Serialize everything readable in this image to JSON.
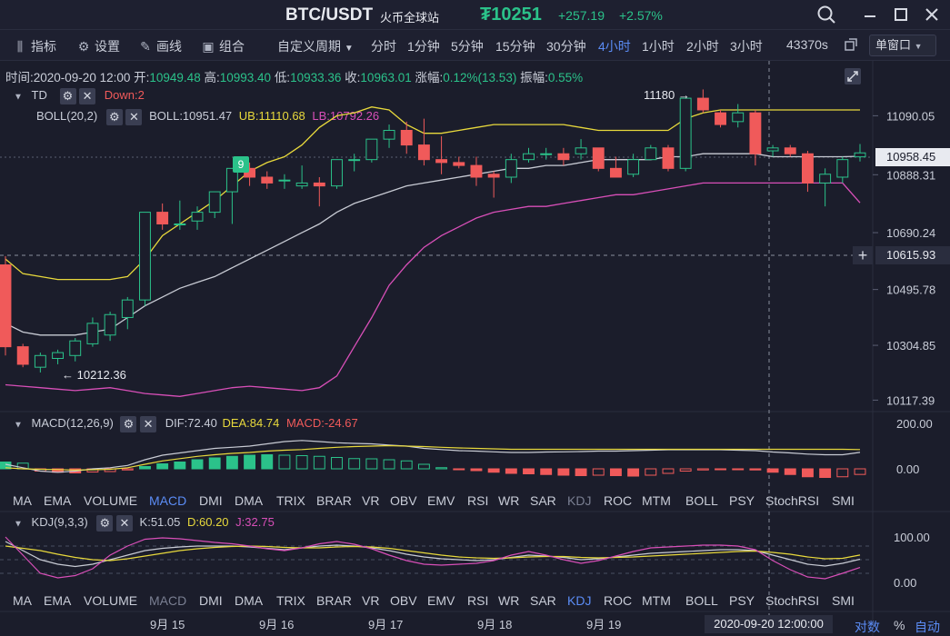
{
  "title": {
    "pair": "BTC/USDT",
    "exchange": "火币全球站",
    "currency_symbol": "₮",
    "price": "10251",
    "change": "+257.19",
    "change_pct": "+2.57%"
  },
  "toolbar": {
    "indicator": "指标",
    "settings": "设置",
    "draw": "画线",
    "combine": "组合",
    "custom_period": "自定义周期",
    "periods": [
      "分时",
      "1分钟",
      "5分钟",
      "15分钟",
      "30分钟",
      "4小时",
      "1小时",
      "2小时",
      "3小时"
    ],
    "active_period": "4小时",
    "countdown": "43370s",
    "window_mode": "单窗口"
  },
  "ohlc_bar": {
    "time_label": "时间:",
    "time": "2020-09-20 12:00",
    "open_label": "开:",
    "open": "10949.48",
    "high_label": "高:",
    "high": "10993.40",
    "low_label": "低:",
    "low": "10933.36",
    "close_label": "收:",
    "close": "10963.01",
    "change_label": "涨幅:",
    "change": "0.12%(13.53)",
    "amp_label": "振幅:",
    "amp": "0.55%"
  },
  "main_legend": {
    "td": "TD",
    "td_down": "Down:2",
    "boll_name": "BOLL(20,2)",
    "boll": "BOLL:10951.47",
    "ub": "UB:11110.68",
    "lb": "LB:10792.26"
  },
  "price_axis": [
    "11090.05",
    "10888.31",
    "10690.24",
    "10495.78",
    "10304.85",
    "10117.39"
  ],
  "price_tags": {
    "last": "10958.45",
    "cursor": "10615.93"
  },
  "annotations": {
    "high": "11180",
    "low": "10212.36",
    "td_count": "9"
  },
  "macd_legend": {
    "name": "MACD(12,26,9)",
    "dif": "DIF:72.40",
    "dea": "DEA:84.74",
    "macd": "MACD:-24.67"
  },
  "macd_axis": [
    "200.00",
    "0.00"
  ],
  "kdj_legend": {
    "name": "KDJ(9,3,3)",
    "k": "K:51.05",
    "d": "D:60.20",
    "j": "J:32.75"
  },
  "kdj_axis": [
    "100.00",
    "0.00"
  ],
  "indicator_tabs": [
    "MA",
    "EMA",
    "VOLUME",
    "MACD",
    "DMI",
    "DMA",
    "TRIX",
    "BRAR",
    "VR",
    "OBV",
    "EMV",
    "RSI",
    "WR",
    "SAR",
    "KDJ",
    "ROC",
    "MTM",
    "BOLL",
    "PSY",
    "StochRSI",
    "SMI"
  ],
  "x_axis": [
    "9月 15",
    "9月 16",
    "9月 17",
    "9月 18",
    "9月 19"
  ],
  "cursor_time": "2020-09-20 12:00:00",
  "footer": {
    "log": "对数",
    "percent": "%",
    "auto": "自动"
  },
  "colors": {
    "up": "#2bc28a",
    "down": "#f05a5a",
    "ub": "#e8d93c",
    "lb": "#d84fb8",
    "mid": "#c8cbd4",
    "accent": "#5b8cf5"
  },
  "chart_data": {
    "type": "candlestick",
    "candles": [
      {
        "o": 10580,
        "h": 10610,
        "l": 10270,
        "c": 10300
      },
      {
        "o": 10300,
        "h": 10310,
        "l": 10230,
        "c": 10240
      },
      {
        "o": 10230,
        "h": 10280,
        "l": 10212,
        "c": 10270
      },
      {
        "o": 10260,
        "h": 10290,
        "l": 10240,
        "c": 10280
      },
      {
        "o": 10270,
        "h": 10330,
        "l": 10250,
        "c": 10320
      },
      {
        "o": 10310,
        "h": 10400,
        "l": 10300,
        "c": 10380
      },
      {
        "o": 10340,
        "h": 10420,
        "l": 10320,
        "c": 10410
      },
      {
        "o": 10400,
        "h": 10470,
        "l": 10360,
        "c": 10460
      },
      {
        "o": 10460,
        "h": 10760,
        "l": 10440,
        "c": 10760
      },
      {
        "o": 10760,
        "h": 10790,
        "l": 10700,
        "c": 10720
      },
      {
        "o": 10720,
        "h": 10800,
        "l": 10700,
        "c": 10720
      },
      {
        "o": 10730,
        "h": 10780,
        "l": 10700,
        "c": 10760
      },
      {
        "o": 10760,
        "h": 10830,
        "l": 10740,
        "c": 10830
      },
      {
        "o": 10830,
        "h": 10910,
        "l": 10720,
        "c": 10910
      },
      {
        "o": 10910,
        "h": 10930,
        "l": 10850,
        "c": 10880
      },
      {
        "o": 10880,
        "h": 10900,
        "l": 10840,
        "c": 10860
      },
      {
        "o": 10870,
        "h": 10890,
        "l": 10840,
        "c": 10870
      },
      {
        "o": 10850,
        "h": 10920,
        "l": 10840,
        "c": 10860
      },
      {
        "o": 10860,
        "h": 10880,
        "l": 10780,
        "c": 10850
      },
      {
        "o": 10850,
        "h": 10940,
        "l": 10840,
        "c": 10940
      },
      {
        "o": 10940,
        "h": 10960,
        "l": 10900,
        "c": 10940
      },
      {
        "o": 10940,
        "h": 11010,
        "l": 10930,
        "c": 11010
      },
      {
        "o": 11010,
        "h": 11060,
        "l": 10980,
        "c": 11040
      },
      {
        "o": 11040,
        "h": 11070,
        "l": 10960,
        "c": 10990
      },
      {
        "o": 10990,
        "h": 11080,
        "l": 10920,
        "c": 10940
      },
      {
        "o": 10940,
        "h": 11020,
        "l": 10890,
        "c": 10930
      },
      {
        "o": 10930,
        "h": 10950,
        "l": 10910,
        "c": 10920
      },
      {
        "o": 10920,
        "h": 10950,
        "l": 10850,
        "c": 10880
      },
      {
        "o": 10890,
        "h": 10900,
        "l": 10810,
        "c": 10880
      },
      {
        "o": 10880,
        "h": 10960,
        "l": 10860,
        "c": 10940
      },
      {
        "o": 10940,
        "h": 10980,
        "l": 10930,
        "c": 10960
      },
      {
        "o": 10960,
        "h": 10980,
        "l": 10940,
        "c": 10960
      },
      {
        "o": 10960,
        "h": 10980,
        "l": 10920,
        "c": 10940
      },
      {
        "o": 10960,
        "h": 11010,
        "l": 10940,
        "c": 10980
      },
      {
        "o": 10980,
        "h": 10980,
        "l": 10900,
        "c": 10910
      },
      {
        "o": 10910,
        "h": 10950,
        "l": 10880,
        "c": 10880
      },
      {
        "o": 10890,
        "h": 10960,
        "l": 10880,
        "c": 10940
      },
      {
        "o": 10940,
        "h": 10990,
        "l": 10940,
        "c": 10980
      },
      {
        "o": 10980,
        "h": 10990,
        "l": 10900,
        "c": 10910
      },
      {
        "o": 10910,
        "h": 11150,
        "l": 10900,
        "c": 11150
      },
      {
        "o": 11150,
        "h": 11180,
        "l": 11100,
        "c": 11110
      },
      {
        "o": 11100,
        "h": 11110,
        "l": 11050,
        "c": 11060
      },
      {
        "o": 11070,
        "h": 11130,
        "l": 11050,
        "c": 11100
      },
      {
        "o": 11100,
        "h": 11110,
        "l": 10920,
        "c": 10960
      },
      {
        "o": 10970,
        "h": 10990,
        "l": 10950,
        "c": 10980
      },
      {
        "o": 10980,
        "h": 10990,
        "l": 10950,
        "c": 10960
      },
      {
        "o": 10960,
        "h": 10970,
        "l": 10830,
        "c": 10860
      },
      {
        "o": 10860,
        "h": 10910,
        "l": 10780,
        "c": 10890
      },
      {
        "o": 10880,
        "h": 10950,
        "l": 10860,
        "c": 10940
      },
      {
        "o": 10949.48,
        "h": 10993.4,
        "l": 10933.36,
        "c": 10963.01
      }
    ],
    "ub": [
      10600,
      10550,
      10540,
      10530,
      10530,
      10530,
      10530,
      10540,
      10600,
      10680,
      10720,
      10760,
      10800,
      10850,
      10900,
      10930,
      10950,
      10990,
      11050,
      11090,
      11100,
      11120,
      11110,
      11060,
      11030,
      11030,
      11040,
      11050,
      11060,
      11060,
      11060,
      11060,
      11060,
      11050,
      11040,
      11040,
      11040,
      11040,
      11040,
      11080,
      11100,
      11110,
      11110,
      11110,
      11110,
      11110,
      11110,
      11110,
      11110,
      11110
    ],
    "mid": [
      10380,
      10350,
      10340,
      10340,
      10340,
      10350,
      10360,
      10400,
      10440,
      10470,
      10500,
      10520,
      10540,
      10570,
      10600,
      10630,
      10660,
      10690,
      10720,
      10760,
      10790,
      10810,
      10830,
      10850,
      10860,
      10870,
      10880,
      10890,
      10900,
      10910,
      10910,
      10920,
      10920,
      10930,
      10940,
      10940,
      10940,
      10940,
      10950,
      10950,
      10960,
      10960,
      10960,
      10960,
      10950,
      10950,
      10950,
      10950,
      10950,
      10951.47
    ],
    "lb": [
      10170,
      10165,
      10160,
      10155,
      10150,
      10155,
      10160,
      10150,
      10140,
      10135,
      10130,
      10140,
      10150,
      10160,
      10165,
      10160,
      10155,
      10150,
      10160,
      10200,
      10300,
      10400,
      10510,
      10580,
      10640,
      10680,
      10710,
      10740,
      10760,
      10770,
      10780,
      10780,
      10790,
      10800,
      10810,
      10820,
      10820,
      10830,
      10840,
      10850,
      10860,
      10860,
      10860,
      10860,
      10860,
      10860,
      10860,
      10860,
      10860,
      10792.26
    ],
    "macd_range": [
      -50,
      220
    ],
    "macd_hist": [
      30,
      25,
      -10,
      -15,
      -18,
      -14,
      -12,
      -5,
      10,
      22,
      30,
      40,
      48,
      55,
      60,
      62,
      60,
      58,
      55,
      50,
      45,
      44,
      40,
      35,
      20,
      5,
      -3,
      -8,
      -15,
      -20,
      -22,
      -25,
      -28,
      -30,
      -28,
      -30,
      -32,
      -28,
      -20,
      -10,
      -5,
      -2,
      -3,
      -5,
      -15,
      -25,
      -35,
      -38,
      -35,
      -24.67
    ],
    "macd_dif": [
      20,
      5,
      -10,
      -15,
      -10,
      0,
      5,
      15,
      40,
      60,
      70,
      80,
      90,
      95,
      100,
      110,
      120,
      125,
      120,
      115,
      112,
      110,
      105,
      100,
      90,
      85,
      80,
      78,
      75,
      72,
      72,
      74,
      75,
      76,
      78,
      78,
      80,
      82,
      84,
      84,
      84,
      84,
      82,
      80,
      74,
      70,
      65,
      62,
      62,
      72.4
    ],
    "macd_dea": [
      5,
      0,
      -2,
      -3,
      -5,
      -4,
      -2,
      5,
      20,
      35,
      45,
      55,
      62,
      68,
      72,
      78,
      82,
      85,
      90,
      95,
      98,
      100,
      102,
      100,
      98,
      95,
      92,
      90,
      88,
      86,
      86,
      86,
      86,
      86,
      86,
      86,
      86,
      86,
      86,
      86,
      86,
      86,
      86,
      86,
      86,
      86,
      86,
      86,
      86,
      84.74
    ],
    "kdj_k": [
      90,
      70,
      50,
      40,
      35,
      40,
      50,
      60,
      70,
      75,
      78,
      80,
      80,
      80,
      78,
      75,
      72,
      76,
      80,
      82,
      80,
      76,
      70,
      62,
      56,
      52,
      50,
      48,
      50,
      55,
      60,
      58,
      55,
      50,
      52,
      56,
      60,
      64,
      66,
      68,
      70,
      72,
      72,
      70,
      60,
      50,
      40,
      36,
      42,
      51.05
    ],
    "kdj_d": [
      80,
      75,
      70,
      62,
      55,
      50,
      48,
      52,
      58,
      64,
      70,
      74,
      77,
      79,
      80,
      79,
      77,
      76,
      76,
      78,
      79,
      78,
      75,
      70,
      65,
      60,
      56,
      54,
      53,
      54,
      56,
      57,
      57,
      55,
      54,
      55,
      56,
      58,
      60,
      62,
      64,
      66,
      68,
      69,
      66,
      62,
      56,
      52,
      53,
      60.2
    ],
    "kdj_j": [
      100,
      60,
      20,
      10,
      15,
      30,
      60,
      80,
      95,
      98,
      96,
      92,
      88,
      85,
      80,
      74,
      70,
      76,
      85,
      90,
      84,
      74,
      60,
      48,
      40,
      38,
      40,
      42,
      48,
      60,
      68,
      60,
      50,
      42,
      48,
      58,
      68,
      76,
      78,
      80,
      82,
      82,
      80,
      72,
      48,
      28,
      12,
      8,
      20,
      32.75
    ]
  }
}
